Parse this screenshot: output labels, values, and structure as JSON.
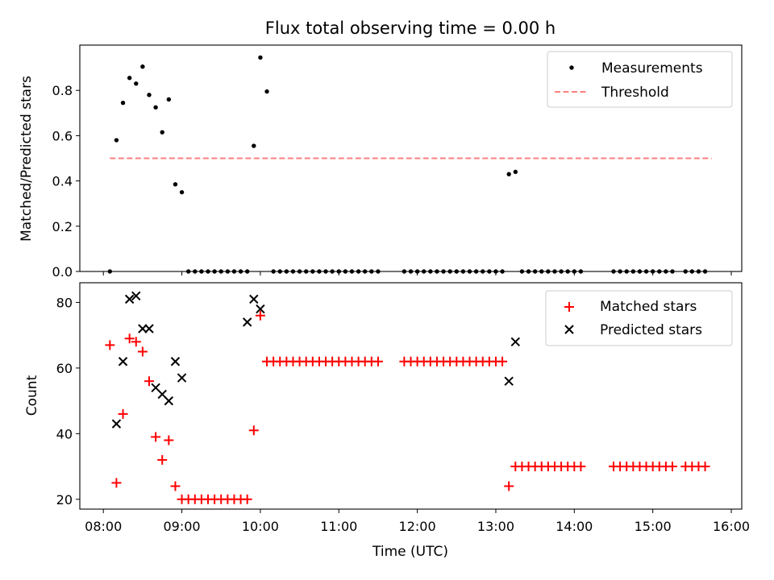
{
  "chart_data": [
    {
      "type": "scatter",
      "title": "Flux total observing time = 0.00 h",
      "xlabel": "",
      "ylabel": "Matched/Predicted stars",
      "xlim": [
        "07:42",
        "16:08"
      ],
      "ylim": [
        0,
        1.0
      ],
      "yticks": [
        "0.0",
        "0.2",
        "0.4",
        "0.6",
        "0.8"
      ],
      "legend_position": "top-right",
      "series": [
        {
          "name": "Measurements",
          "color": "#000000",
          "marker": "dot",
          "x": [
            "08:05",
            "08:10",
            "08:15",
            "08:20",
            "08:25",
            "08:30",
            "08:35",
            "08:40",
            "08:45",
            "08:50",
            "08:55",
            "09:00",
            "09:05",
            "09:10",
            "09:15",
            "09:20",
            "09:25",
            "09:30",
            "09:35",
            "09:40",
            "09:45",
            "09:50",
            "09:55",
            "10:00",
            "10:05",
            "10:10",
            "10:15",
            "10:20",
            "10:25",
            "10:30",
            "10:35",
            "10:40",
            "10:45",
            "10:50",
            "10:55",
            "11:00",
            "11:05",
            "11:10",
            "11:15",
            "11:20",
            "11:25",
            "11:30",
            "11:50",
            "11:55",
            "12:00",
            "12:05",
            "12:10",
            "12:15",
            "12:20",
            "12:25",
            "12:30",
            "12:35",
            "12:40",
            "12:45",
            "12:50",
            "12:55",
            "13:00",
            "13:05",
            "13:10",
            "13:15",
            "13:20",
            "13:25",
            "13:30",
            "13:35",
            "13:40",
            "13:45",
            "13:50",
            "13:55",
            "14:00",
            "14:05",
            "14:30",
            "14:35",
            "14:40",
            "14:45",
            "14:50",
            "14:55",
            "15:00",
            "15:05",
            "15:10",
            "15:15",
            "15:25",
            "15:30",
            "15:35",
            "15:40"
          ],
          "y": [
            0.0,
            0.58,
            0.745,
            0.855,
            0.83,
            0.905,
            0.78,
            0.725,
            0.615,
            0.76,
            0.385,
            0.35,
            0.0,
            0.0,
            0.0,
            0.0,
            0.0,
            0.0,
            0.0,
            0.0,
            0.0,
            0.0,
            0.555,
            0.945,
            0.795,
            0.0,
            0.0,
            0.0,
            0.0,
            0.0,
            0.0,
            0.0,
            0.0,
            0.0,
            0.0,
            0.0,
            0.0,
            0.0,
            0.0,
            0.0,
            0.0,
            0.0,
            0.0,
            0.0,
            0.0,
            0.0,
            0.0,
            0.0,
            0.0,
            0.0,
            0.0,
            0.0,
            0.0,
            0.0,
            0.0,
            0.0,
            0.0,
            0.0,
            0.43,
            0.44,
            0.0,
            0.0,
            0.0,
            0.0,
            0.0,
            0.0,
            0.0,
            0.0,
            0.0,
            0.0,
            0.0,
            0.0,
            0.0,
            0.0,
            0.0,
            0.0,
            0.0,
            0.0,
            0.0,
            0.0,
            0.0,
            0.0,
            0.0,
            0.0
          ]
        },
        {
          "name": "Threshold",
          "color": "#ff7f7f",
          "style": "dashed",
          "x": [
            "08:05",
            "15:45"
          ],
          "y": [
            0.5,
            0.5
          ]
        }
      ]
    },
    {
      "type": "scatter",
      "title": "",
      "xlabel": "Time (UTC)",
      "ylabel": "Count",
      "xlim": [
        "07:42",
        "16:08"
      ],
      "ylim": [
        17,
        86
      ],
      "yticks": [
        "20",
        "40",
        "60",
        "80"
      ],
      "xticks": [
        "08:00",
        "09:00",
        "10:00",
        "11:00",
        "12:00",
        "13:00",
        "14:00",
        "15:00",
        "16:00"
      ],
      "legend_position": "top-right",
      "series": [
        {
          "name": "Matched stars",
          "color": "#ff0000",
          "marker": "plus",
          "x": [
            "08:05",
            "08:10",
            "08:15",
            "08:20",
            "08:25",
            "08:30",
            "08:35",
            "08:40",
            "08:45",
            "08:50",
            "08:55",
            "09:00",
            "09:05",
            "09:10",
            "09:15",
            "09:20",
            "09:25",
            "09:30",
            "09:35",
            "09:40",
            "09:45",
            "09:50",
            "09:55",
            "10:00",
            "10:05",
            "10:10",
            "10:15",
            "10:20",
            "10:25",
            "10:30",
            "10:35",
            "10:40",
            "10:45",
            "10:50",
            "10:55",
            "11:00",
            "11:05",
            "11:10",
            "11:15",
            "11:20",
            "11:25",
            "11:30",
            "11:50",
            "11:55",
            "12:00",
            "12:05",
            "12:10",
            "12:15",
            "12:20",
            "12:25",
            "12:30",
            "12:35",
            "12:40",
            "12:45",
            "12:50",
            "12:55",
            "13:00",
            "13:05",
            "13:10",
            "13:15",
            "13:20",
            "13:25",
            "13:30",
            "13:35",
            "13:40",
            "13:45",
            "13:50",
            "13:55",
            "14:00",
            "14:05",
            "14:30",
            "14:35",
            "14:40",
            "14:45",
            "14:50",
            "14:55",
            "15:00",
            "15:05",
            "15:10",
            "15:15",
            "15:25",
            "15:30",
            "15:35",
            "15:40"
          ],
          "y": [
            67,
            25,
            46,
            69,
            68,
            65,
            56,
            39,
            32,
            38,
            24,
            20,
            20,
            20,
            20,
            20,
            20,
            20,
            20,
            20,
            20,
            20,
            41,
            76,
            62,
            62,
            62,
            62,
            62,
            62,
            62,
            62,
            62,
            62,
            62,
            62,
            62,
            62,
            62,
            62,
            62,
            62,
            62,
            62,
            62,
            62,
            62,
            62,
            62,
            62,
            62,
            62,
            62,
            62,
            62,
            62,
            62,
            62,
            24,
            30,
            30,
            30,
            30,
            30,
            30,
            30,
            30,
            30,
            30,
            30,
            30,
            30,
            30,
            30,
            30,
            30,
            30,
            30,
            30,
            30,
            30,
            30,
            30,
            30
          ]
        },
        {
          "name": "Predicted stars",
          "color": "#000000",
          "marker": "x",
          "x": [
            "08:10",
            "08:15",
            "08:20",
            "08:25",
            "08:30",
            "08:35",
            "08:40",
            "08:45",
            "08:50",
            "08:55",
            "09:00",
            "09:50",
            "09:55",
            "10:00",
            "13:10",
            "13:15"
          ],
          "y": [
            43,
            62,
            81,
            82,
            72,
            72,
            54,
            52,
            50,
            62,
            57,
            74,
            81,
            78,
            56,
            68
          ]
        }
      ]
    }
  ]
}
